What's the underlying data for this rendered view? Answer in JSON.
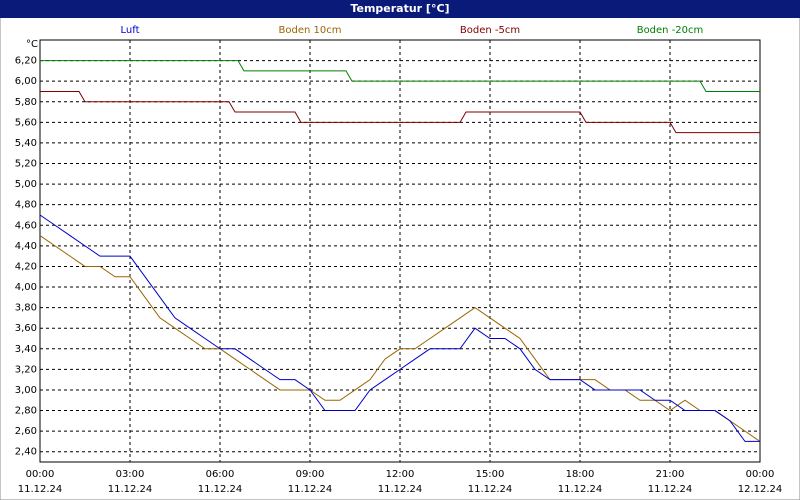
{
  "chart_data": {
    "type": "line",
    "title": "Temperatur [°C]",
    "y_label": "°C",
    "legend": "top",
    "grid": true,
    "series": [
      {
        "name": "Luft",
        "color": "#0000cc",
        "x": [
          0,
          0.5,
          1,
          1.5,
          2,
          2.5,
          3,
          3.5,
          4,
          4.5,
          5,
          5.5,
          6,
          6.5,
          7,
          7.5,
          8,
          8.5,
          9,
          9.5,
          10,
          10.5,
          11,
          11.5,
          12,
          12.5,
          13,
          13.5,
          14,
          14.5,
          15,
          15.5,
          16,
          16.5,
          17,
          17.5,
          18,
          18.5,
          19,
          19.5,
          20,
          20.5,
          21,
          21.5,
          22,
          22.5,
          23,
          23.5,
          24
        ],
        "values": [
          4.7,
          4.6,
          4.5,
          4.4,
          4.3,
          4.3,
          4.3,
          4.1,
          3.9,
          3.7,
          3.6,
          3.5,
          3.4,
          3.4,
          3.3,
          3.2,
          3.1,
          3.1,
          3.0,
          2.8,
          2.8,
          2.8,
          3.0,
          3.1,
          3.2,
          3.3,
          3.4,
          3.4,
          3.4,
          3.6,
          3.5,
          3.5,
          3.4,
          3.2,
          3.1,
          3.1,
          3.1,
          3.0,
          3.0,
          3.0,
          3.0,
          2.9,
          2.9,
          2.8,
          2.8,
          2.8,
          2.7,
          2.5,
          2.5
        ]
      },
      {
        "name": "Boden 10cm",
        "color": "#996600",
        "x": [
          0,
          0.5,
          1,
          1.5,
          2,
          2.5,
          3,
          3.5,
          4,
          4.5,
          5,
          5.5,
          6,
          6.5,
          7,
          7.5,
          8,
          8.5,
          9,
          9.5,
          10,
          10.5,
          11,
          11.5,
          12,
          12.5,
          13,
          13.5,
          14,
          14.5,
          15,
          15.5,
          16,
          16.5,
          17,
          17.5,
          18,
          18.5,
          19,
          19.5,
          20,
          20.5,
          21,
          21.5,
          22,
          22.5,
          23,
          23.5,
          24
        ],
        "values": [
          4.5,
          4.4,
          4.3,
          4.2,
          4.2,
          4.1,
          4.1,
          3.9,
          3.7,
          3.6,
          3.5,
          3.4,
          3.4,
          3.3,
          3.2,
          3.1,
          3.0,
          3.0,
          3.0,
          2.9,
          2.9,
          3.0,
          3.1,
          3.3,
          3.4,
          3.4,
          3.5,
          3.6,
          3.7,
          3.8,
          3.7,
          3.6,
          3.5,
          3.3,
          3.1,
          3.1,
          3.1,
          3.1,
          3.0,
          3.0,
          2.9,
          2.9,
          2.8,
          2.9,
          2.8,
          2.8,
          2.7,
          2.6,
          2.5
        ]
      },
      {
        "name": "Boden -5cm",
        "color": "#800000",
        "x": [
          0,
          1.3,
          1.5,
          6.3,
          6.5,
          8.5,
          8.7,
          14,
          14.2,
          18,
          18.2,
          21,
          21.2,
          24
        ],
        "values": [
          5.9,
          5.9,
          5.8,
          5.8,
          5.7,
          5.7,
          5.6,
          5.6,
          5.7,
          5.7,
          5.6,
          5.6,
          5.5,
          5.5
        ]
      },
      {
        "name": "Boden -20cm",
        "color": "#008000",
        "x": [
          0,
          6.6,
          6.8,
          10.2,
          10.4,
          22,
          22.2,
          24
        ],
        "values": [
          6.2,
          6.2,
          6.1,
          6.1,
          6.0,
          6.0,
          5.9,
          5.9
        ]
      }
    ],
    "xlim": [
      0,
      24
    ],
    "ylim": [
      2.3,
      6.4
    ],
    "xticks": [
      {
        "value": 0,
        "label": "00:00",
        "sublabel": "11.12.24"
      },
      {
        "value": 3,
        "label": "03:00",
        "sublabel": "11.12.24"
      },
      {
        "value": 6,
        "label": "06:00",
        "sublabel": "11.12.24"
      },
      {
        "value": 9,
        "label": "09:00",
        "sublabel": "11.12.24"
      },
      {
        "value": 12,
        "label": "12:00",
        "sublabel": "11.12.24"
      },
      {
        "value": 15,
        "label": "15:00",
        "sublabel": "11.12.24"
      },
      {
        "value": 18,
        "label": "18:00",
        "sublabel": "11.12.24"
      },
      {
        "value": 21,
        "label": "21:00",
        "sublabel": "11.12.24"
      },
      {
        "value": 24,
        "label": "00:00",
        "sublabel": "12.12.24"
      }
    ],
    "yticks": [
      {
        "value": 2.4,
        "label": "2,40"
      },
      {
        "value": 2.6,
        "label": "2,60"
      },
      {
        "value": 2.8,
        "label": "2,80"
      },
      {
        "value": 3.0,
        "label": "3,00"
      },
      {
        "value": 3.2,
        "label": "3,20"
      },
      {
        "value": 3.4,
        "label": "3,40"
      },
      {
        "value": 3.6,
        "label": "3,60"
      },
      {
        "value": 3.8,
        "label": "3,80"
      },
      {
        "value": 4.0,
        "label": "4,00"
      },
      {
        "value": 4.2,
        "label": "4,20"
      },
      {
        "value": 4.4,
        "label": "4,40"
      },
      {
        "value": 4.6,
        "label": "4,60"
      },
      {
        "value": 4.8,
        "label": "4,80"
      },
      {
        "value": 5.0,
        "label": "5,00"
      },
      {
        "value": 5.2,
        "label": "5,20"
      },
      {
        "value": 5.4,
        "label": "5,40"
      },
      {
        "value": 5.6,
        "label": "5,60"
      },
      {
        "value": 5.8,
        "label": "5,80"
      },
      {
        "value": 6.0,
        "label": "6,00"
      },
      {
        "value": 6.2,
        "label": "6,20"
      }
    ]
  }
}
